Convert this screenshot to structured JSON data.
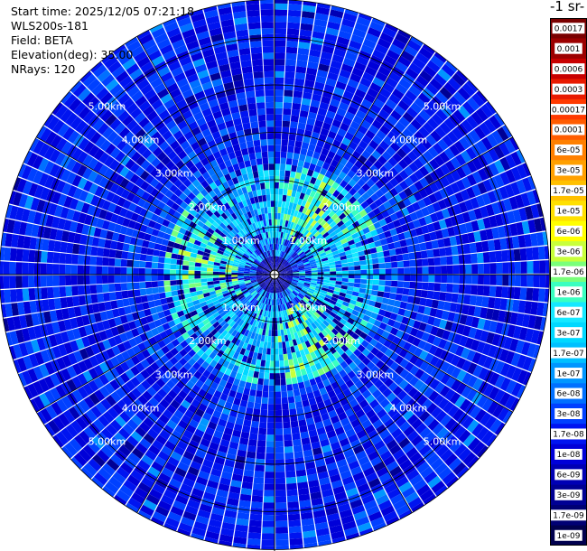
{
  "header": {
    "start_time": "Start time: 2025/12/05 07:21:18",
    "instrument": "WLS200s-181",
    "field": "Field: BETA",
    "elevation": "Elevation(deg): 35.00",
    "nrays": "NRays: 120"
  },
  "colorbar": {
    "units_label": "-1 sr-",
    "ticks": [
      "0.0017",
      "0.001",
      "0.0006",
      "0.0003",
      "0.00017",
      "0.0001",
      "6e-05",
      "3e-05",
      "1.7e-05",
      "1e-05",
      "6e-06",
      "3e-06",
      "1.7e-06",
      "1e-06",
      "6e-07",
      "3e-07",
      "1.7e-07",
      "1e-07",
      "6e-08",
      "3e-08",
      "1.7e-08",
      "1e-08",
      "6e-09",
      "3e-09",
      "1.7e-09",
      "1e-09"
    ],
    "colors": [
      "#7a0000",
      "#9c0000",
      "#c80000",
      "#e81a00",
      "#ff3a00",
      "#ff5c00",
      "#ff8000",
      "#ffa000",
      "#ffc000",
      "#ffe000",
      "#ffff00",
      "#c8ff3a",
      "#7aff7a",
      "#3affc0",
      "#16e8ff",
      "#00d8ff",
      "#00c0ff",
      "#0096ff",
      "#0070ff",
      "#0040ff",
      "#0014f0",
      "#0000d8",
      "#0000b4",
      "#000094",
      "#000074",
      "#00004e"
    ]
  },
  "chart_data": {
    "type": "ppi",
    "projection": "polar",
    "field": "BETA",
    "elevation_deg": 35.0,
    "n_rays": 120,
    "ray_width_deg": 3.0,
    "range_rings_km": [
      1.0,
      2.0,
      3.0,
      4.0,
      5.0
    ],
    "max_range_km": 5.8,
    "ring_labels": [
      "1.00km",
      "2.00km",
      "3.00km",
      "4.00km",
      "5.00km"
    ],
    "color_scale": "log",
    "value_range": [
      1e-09,
      0.0017
    ],
    "azimuth_grid_deg": [
      0,
      30,
      60,
      90,
      120,
      150,
      180,
      210,
      240,
      270,
      300,
      330
    ],
    "observed_pattern": "high backscatter (~1e-06 to 3e-06) in inner ring 0.8-2.3 km; predominantly 1e-08 to 3e-08 beyond 2.5 km; low values near origin"
  }
}
